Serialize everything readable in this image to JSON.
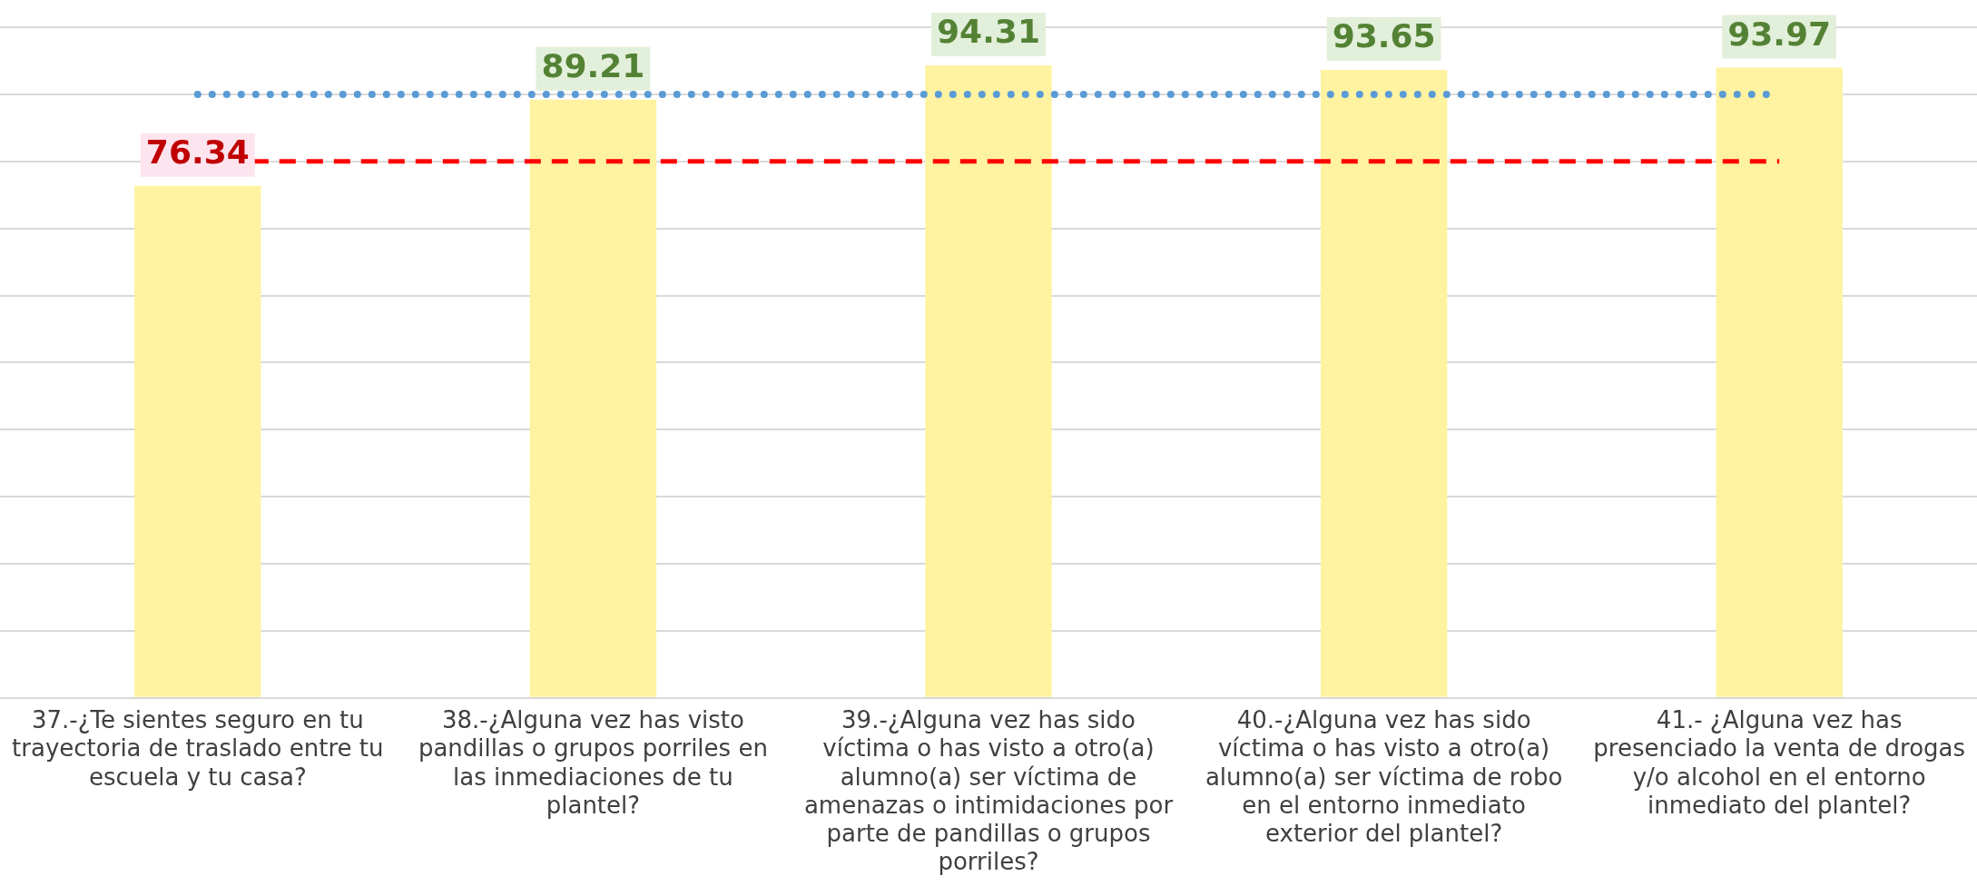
{
  "chart_data": {
    "type": "bar",
    "categories": [
      "37.-¿Te sientes seguro en tu trayectoria de traslado entre tu escuela y tu casa?",
      "38.-¿Alguna vez has visto pandillas o grupos porriles en las inmediaciones de tu plantel?",
      "39.-¿Alguna vez has sido víctima o has visto a otro(a) alumno(a) ser víctima de amenazas o intimidaciones por parte de pandillas o grupos porriles?",
      "40.-¿Alguna vez has sido víctima o has visto a otro(a) alumno(a) ser víctima de robo en el entorno inmediato exterior del plantel?",
      "41.- ¿Alguna vez has presenciado la venta de drogas y/o alcohol en el entorno inmediato del plantel?"
    ],
    "values": [
      76.34,
      89.21,
      94.31,
      93.65,
      93.97
    ],
    "color": "#fff2a0",
    "data_labels": true,
    "ylim": [
      0,
      100
    ],
    "tick_labels": "x",
    "grid": "y",
    "legend": false,
    "ref_lines": [
      {
        "axis": "y",
        "value": 90,
        "color": "#5b9bd5",
        "line_style": "dotted"
      },
      {
        "axis": "y",
        "value": 80,
        "color": "#ff0000",
        "line_style": "dashed"
      }
    ]
  }
}
